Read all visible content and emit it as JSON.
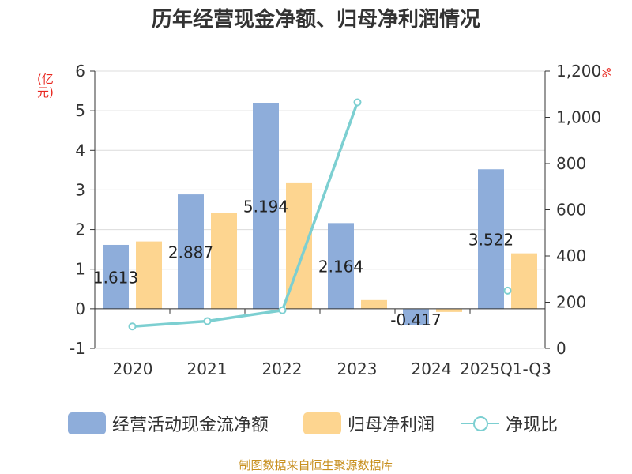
{
  "title": "历年经营现金净额、归母净利润情况",
  "unit_left": "(亿元)",
  "unit_right": "%",
  "source": "制图数据来自恒生聚源数据库",
  "colors": {
    "cash": "#8eadda",
    "profit": "#fdd590",
    "ratio": "#7ccfd1",
    "unit": "#e8271f",
    "source": "#c8901f"
  },
  "legend": {
    "cash": "经营活动现金流净额",
    "profit": "归母净利润",
    "ratio": "净现比"
  },
  "chart_data": {
    "type": "bar",
    "categories": [
      "2020",
      "2021",
      "2022",
      "2023",
      "2024",
      "2025Q1-Q3"
    ],
    "series": [
      {
        "name": "经营活动现金流净额",
        "type": "bar",
        "axis": "left",
        "values": [
          1.613,
          2.887,
          5.194,
          2.164,
          -0.417,
          3.522
        ],
        "labels": [
          "1.613",
          "2.887",
          "5.194",
          "2.164",
          "-0.417",
          "3.522"
        ]
      },
      {
        "name": "归母净利润",
        "type": "bar",
        "axis": "left",
        "values": [
          1.7,
          2.43,
          3.17,
          0.22,
          -0.08,
          1.4
        ]
      },
      {
        "name": "净现比",
        "type": "line",
        "axis": "right",
        "values": [
          95,
          118,
          165,
          1065,
          null,
          250
        ]
      }
    ],
    "left_axis": {
      "min": -1,
      "max": 6,
      "ticks": [
        "-1",
        "0",
        "1",
        "2",
        "3",
        "4",
        "5",
        "6"
      ]
    },
    "right_axis": {
      "min": 0,
      "max": 1200,
      "ticks": [
        "0",
        "200",
        "400",
        "600",
        "800",
        "1,000",
        "1,200"
      ]
    },
    "grid": true,
    "legend_position": "bottom"
  }
}
